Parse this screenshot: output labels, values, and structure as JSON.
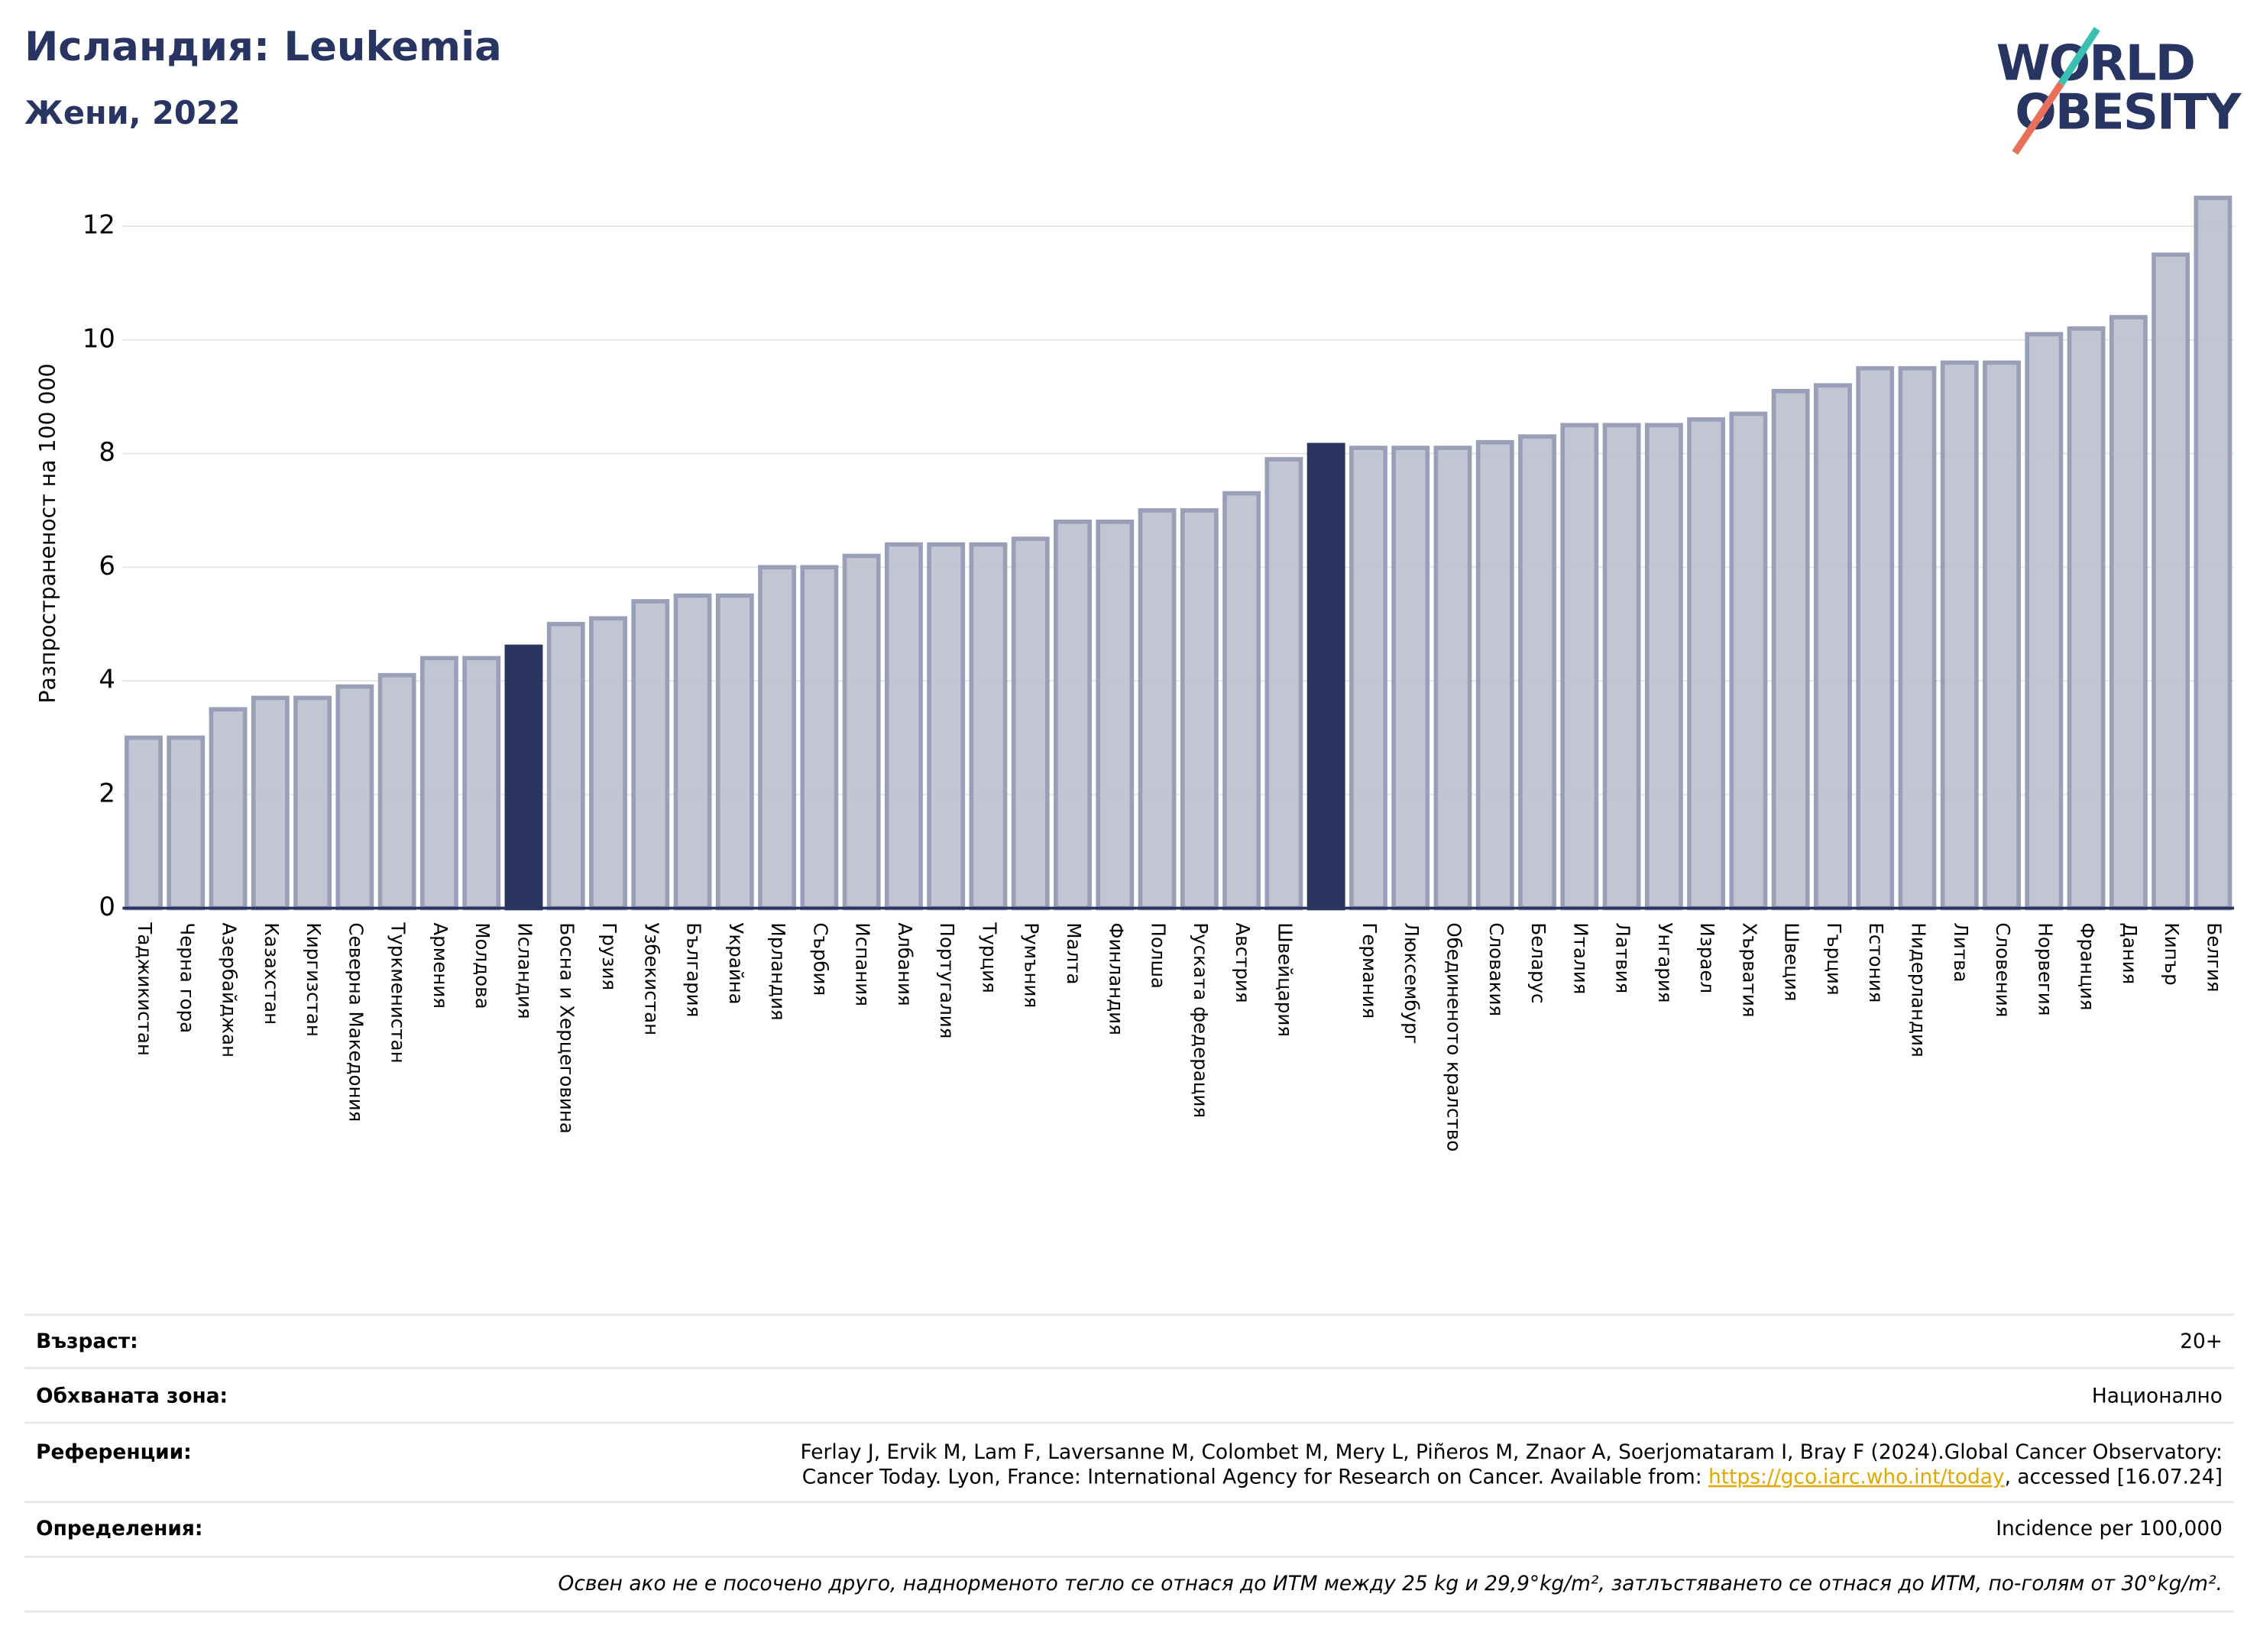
{
  "chart_data": {
    "type": "bar",
    "title": "Исландия: Leukemia",
    "subtitle": "Жени, 2022",
    "logo": {
      "top": "WORLD",
      "bottom": "OBESITY"
    },
    "y_label": "Разпространеност  на 100 000",
    "categories": [
      "Таджикистан",
      "Черна гора",
      "Азербайджан",
      "Казахстан",
      "Киргизстан",
      "Северна Македония",
      "Туркменистан",
      "Армения",
      "Молдова",
      "Исландия",
      "Босна и Херцеговина",
      "Грузия",
      "Узбекистан",
      "България",
      "Украйна",
      "Ирландия",
      "Сърбия",
      "Испания",
      "Албания",
      "Португалия",
      "Турция",
      "Румъния",
      "Малта",
      "Финландия",
      "Полша",
      "Руската федерация",
      "Австрия",
      "Швейцария",
      null,
      "Германия",
      "Люксембург",
      "Обединеното кралство",
      "Словакия",
      "Беларус",
      "Италия",
      "Латвия",
      "Унгария",
      "Израел",
      "Хърватия",
      "Швеция",
      "Гърция",
      "Естония",
      "Нидерландия",
      "Литва",
      "Словения",
      "Норвегия",
      "Франция",
      "Дания",
      "Кипър",
      "Белгия"
    ],
    "values": [
      3.0,
      3.0,
      3.5,
      3.7,
      3.7,
      3.9,
      4.1,
      4.4,
      4.4,
      4.6,
      5.0,
      5.1,
      5.4,
      5.5,
      5.5,
      6.0,
      6.0,
      6.2,
      6.4,
      6.4,
      6.4,
      6.5,
      6.8,
      6.8,
      7.0,
      7.0,
      7.3,
      7.9,
      8.15,
      8.1,
      8.1,
      8.1,
      8.2,
      8.3,
      8.5,
      8.5,
      8.5,
      8.6,
      8.7,
      9.1,
      9.2,
      9.5,
      9.5,
      9.6,
      9.6,
      10.1,
      10.2,
      10.4,
      11.5,
      12.5
    ],
    "color": "#bfc2d0",
    "highlight_color": "#2a3660",
    "highlighted": [
      9,
      28
    ],
    "ylim": [
      0,
      12.8
    ],
    "yticks": [
      0,
      2,
      4,
      6,
      8,
      10,
      12
    ],
    "grid": true
  },
  "footer": {
    "rows": [
      {
        "label": "Възраст:",
        "value": "20+"
      },
      {
        "label": "Обхваната зона:",
        "value": "Национално"
      }
    ],
    "references": {
      "label": "Референции:",
      "line1": "Ferlay J, Ervik M, Lam F, Laversanne M, Colombet M, Mery L, Piñeros M, Znaor A, Soerjomataram I, Bray F (2024).Global Cancer Observatory:",
      "line2": "Cancer Today. Lyon, France: International Agency for Research on Cancer. Available from: ",
      "link": "https://gco.iarc.who.int/today",
      "after": ", accessed [16.07.24]"
    },
    "definitions": {
      "label": "Определения:",
      "value": "Incidence per 100,000"
    },
    "note": "Освен ако не е посочено друго, наднорменото тегло се отнася до ИТМ между 25 kg и 29,9°kg/m², затлъстяването се отнася до ИТМ, по-голям от 30°kg/m²."
  }
}
